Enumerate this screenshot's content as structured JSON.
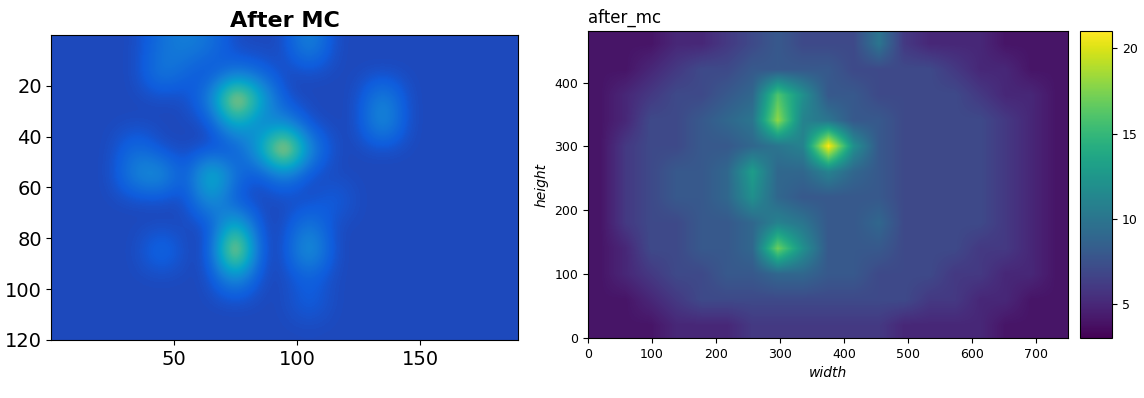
{
  "chart_data": [
    {
      "type": "heatmap",
      "title": "After MC",
      "xlim": [
        0,
        190
      ],
      "ylim": [
        120,
        0
      ],
      "xticks": [
        50,
        100,
        150
      ],
      "yticks": [
        20,
        40,
        60,
        80,
        100,
        120
      ],
      "clim": [
        0,
        100
      ],
      "cells": [
        [
          8,
          8,
          8,
          8,
          20,
          25,
          20,
          8,
          8,
          8,
          30,
          8,
          8,
          8,
          8,
          8,
          8,
          8,
          8
        ],
        [
          8,
          8,
          8,
          8,
          25,
          15,
          8,
          20,
          15,
          8,
          8,
          8,
          8,
          8,
          8,
          8,
          8,
          8,
          8
        ],
        [
          8,
          8,
          8,
          8,
          8,
          8,
          25,
          90,
          45,
          8,
          8,
          8,
          8,
          30,
          8,
          8,
          8,
          8,
          8
        ],
        [
          8,
          8,
          8,
          8,
          8,
          8,
          8,
          45,
          20,
          30,
          8,
          8,
          8,
          35,
          8,
          8,
          8,
          8,
          8
        ],
        [
          8,
          8,
          8,
          20,
          8,
          8,
          8,
          8,
          40,
          95,
          30,
          8,
          8,
          8,
          8,
          8,
          8,
          8,
          8
        ],
        [
          8,
          8,
          8,
          30,
          35,
          8,
          55,
          20,
          8,
          25,
          8,
          8,
          8,
          8,
          8,
          8,
          8,
          8,
          8
        ],
        [
          8,
          8,
          8,
          8,
          8,
          8,
          35,
          8,
          8,
          8,
          8,
          15,
          8,
          8,
          8,
          8,
          8,
          8,
          8
        ],
        [
          8,
          8,
          8,
          8,
          8,
          8,
          8,
          50,
          8,
          8,
          25,
          8,
          8,
          8,
          8,
          8,
          8,
          8,
          8
        ],
        [
          8,
          8,
          8,
          8,
          20,
          8,
          8,
          95,
          8,
          8,
          40,
          8,
          8,
          8,
          8,
          8,
          8,
          8,
          8
        ],
        [
          8,
          8,
          8,
          8,
          8,
          8,
          8,
          35,
          8,
          8,
          15,
          8,
          8,
          8,
          8,
          8,
          8,
          8,
          8
        ],
        [
          8,
          8,
          8,
          8,
          8,
          8,
          8,
          8,
          8,
          8,
          15,
          8,
          8,
          8,
          8,
          8,
          8,
          8,
          8
        ],
        [
          8,
          8,
          8,
          8,
          8,
          8,
          8,
          8,
          8,
          8,
          8,
          8,
          8,
          8,
          8,
          8,
          8,
          8,
          8
        ]
      ]
    },
    {
      "type": "heatmap",
      "title": "after_mc",
      "x_label": "width",
      "y_label": "height",
      "xlim": [
        0,
        750
      ],
      "ylim": [
        0,
        480
      ],
      "xticks": [
        0,
        100,
        200,
        300,
        400,
        500,
        600,
        700
      ],
      "yticks": [
        0,
        100,
        200,
        300,
        400
      ],
      "colorbar": {
        "range": [
          3,
          21
        ],
        "ticks": [
          5,
          10,
          15,
          20
        ]
      },
      "cells": [
        [
          4,
          4,
          4,
          5,
          5,
          6,
          7,
          8,
          7,
          7,
          7,
          10,
          6,
          5,
          5,
          5,
          4,
          4,
          4
        ],
        [
          4,
          4,
          5,
          6,
          7,
          7,
          8,
          8,
          8,
          8,
          7,
          7,
          7,
          7,
          6,
          5,
          5,
          4,
          4
        ],
        [
          4,
          5,
          6,
          7,
          7,
          8,
          9,
          16,
          12,
          8,
          8,
          7,
          7,
          7,
          7,
          6,
          5,
          5,
          4
        ],
        [
          4,
          5,
          7,
          7,
          8,
          9,
          10,
          18,
          11,
          10,
          8,
          8,
          7,
          7,
          7,
          7,
          6,
          5,
          4
        ],
        [
          4,
          6,
          7,
          7,
          8,
          8,
          9,
          10,
          11,
          21,
          12,
          8,
          7,
          7,
          7,
          7,
          6,
          5,
          4
        ],
        [
          4,
          6,
          7,
          8,
          8,
          9,
          13,
          9,
          9,
          11,
          9,
          8,
          7,
          7,
          7,
          7,
          6,
          5,
          4
        ],
        [
          4,
          6,
          7,
          8,
          8,
          9,
          12,
          9,
          8,
          8,
          8,
          8,
          7,
          7,
          7,
          7,
          6,
          5,
          4
        ],
        [
          4,
          6,
          7,
          7,
          8,
          8,
          9,
          11,
          10,
          8,
          8,
          9,
          7,
          7,
          7,
          7,
          6,
          5,
          4
        ],
        [
          4,
          5,
          7,
          7,
          8,
          8,
          9,
          17,
          12,
          8,
          8,
          8,
          7,
          7,
          7,
          6,
          6,
          5,
          4
        ],
        [
          4,
          5,
          6,
          7,
          7,
          8,
          8,
          9,
          9,
          8,
          8,
          7,
          7,
          7,
          6,
          6,
          5,
          5,
          4
        ],
        [
          4,
          4,
          5,
          6,
          7,
          7,
          7,
          7,
          7,
          7,
          7,
          7,
          7,
          6,
          6,
          5,
          5,
          4,
          4
        ],
        [
          4,
          4,
          4,
          5,
          5,
          5,
          6,
          6,
          6,
          6,
          6,
          6,
          5,
          5,
          5,
          5,
          4,
          4,
          4
        ]
      ]
    }
  ]
}
